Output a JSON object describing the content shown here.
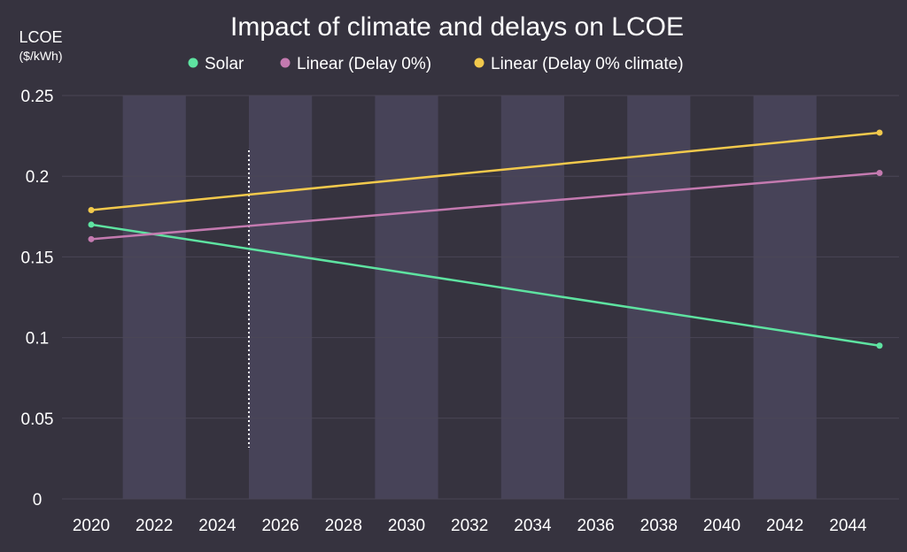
{
  "chart_data": {
    "type": "line",
    "title": "Impact of climate and delays on LCOE",
    "ylabel": "LCOE",
    "yunit": "($/kWh)",
    "xlabel": "",
    "ylim": [
      0,
      0.25
    ],
    "xlim": [
      2020,
      2045
    ],
    "y_ticks": [
      "0",
      "0.05",
      "0.1",
      "0.15",
      "0.2",
      "0.25"
    ],
    "x_ticks": [
      "2020",
      "2022",
      "2024",
      "2026",
      "2028",
      "2030",
      "2032",
      "2034",
      "2036",
      "2038",
      "2040",
      "2042",
      "2044"
    ],
    "grid": true,
    "legend_position": "top",
    "background": "#36333f",
    "band_color": "#474358",
    "marker_year": 2025,
    "series": [
      {
        "name": "Solar",
        "color": "#5ee3a1",
        "x": [
          2020,
          2045
        ],
        "y": [
          0.17,
          0.095
        ]
      },
      {
        "name": "Linear (Delay 0%)",
        "color": "#c47ab0",
        "x": [
          2020,
          2045
        ],
        "y": [
          0.161,
          0.202
        ]
      },
      {
        "name": "Linear (Delay 0% climate)",
        "color": "#f2c94c",
        "x": [
          2020,
          2045
        ],
        "y": [
          0.179,
          0.227
        ]
      }
    ]
  }
}
